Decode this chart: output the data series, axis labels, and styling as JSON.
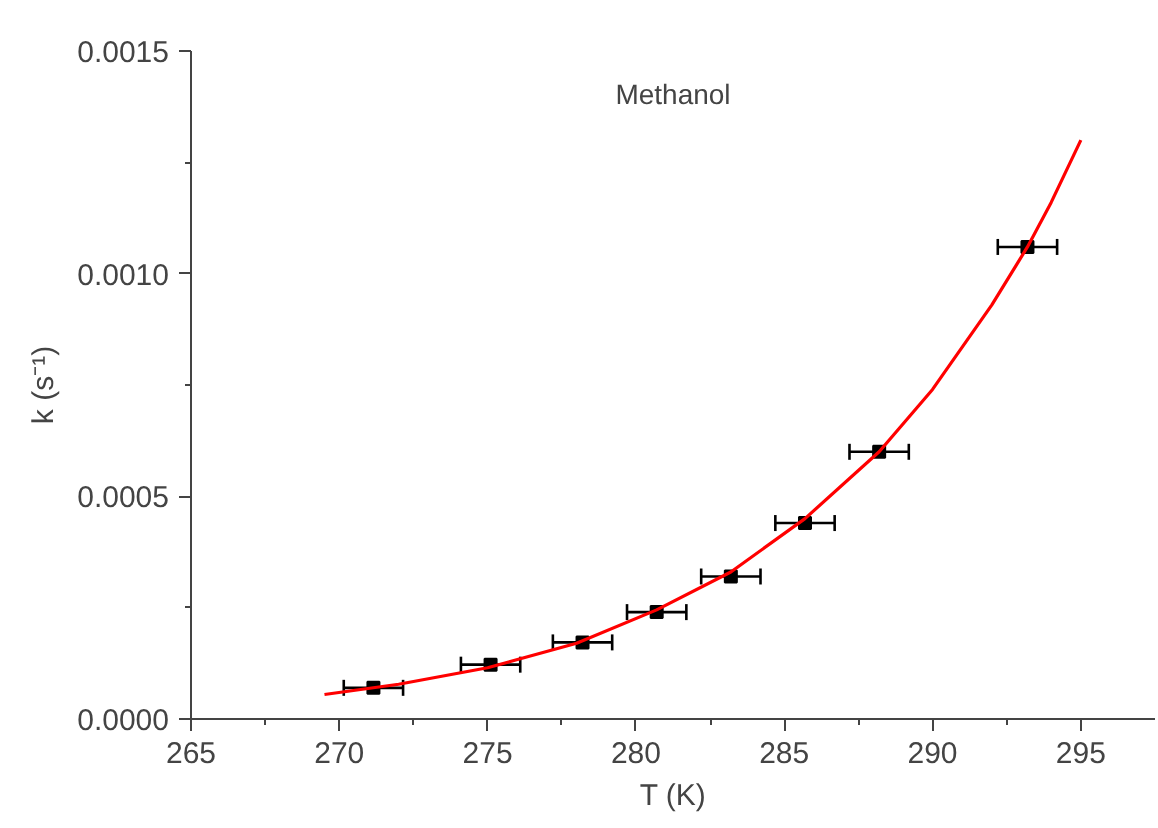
{
  "chart_data": {
    "type": "scatter",
    "title": "Methanol",
    "xlabel": "T (K)",
    "ylabel": "k (s⁻¹)",
    "xlim": [
      265,
      297.5
    ],
    "ylim": [
      0,
      0.0015
    ],
    "xticks": [
      265,
      270,
      275,
      280,
      285,
      290,
      295
    ],
    "yticks": [
      {
        "value": 0,
        "label": "0.0000"
      },
      {
        "value": 0.0005,
        "label": "0.0005"
      },
      {
        "value": 0.001,
        "label": "0.0010"
      },
      {
        "value": 0.0015,
        "label": "0.0015"
      }
    ],
    "grid": false,
    "series": [
      {
        "marker": "square",
        "color": "#000000",
        "x": [
          271.15,
          275.1,
          278.2,
          280.7,
          283.2,
          285.7,
          288.2,
          293.2
        ],
        "values": [
          7e-05,
          0.000122,
          0.000172,
          0.00024,
          0.00032,
          0.00044,
          0.0006,
          0.00106
        ],
        "xerrors": [
          1,
          1,
          1,
          1,
          1,
          1,
          1,
          1
        ]
      },
      {
        "type": "line",
        "color": "#ff0000",
        "line_style": "solid",
        "x": [
          269.5,
          272,
          275,
          278,
          280.7,
          283.2,
          285.7,
          288.2,
          290,
          292,
          293.2,
          294,
          295
        ],
        "values": [
          5.5e-05,
          7.8e-05,
          0.000115,
          0.00017,
          0.000245,
          0.00033,
          0.00045,
          0.0006,
          0.00074,
          0.00093,
          0.00106,
          0.00116,
          0.0013
        ]
      }
    ]
  }
}
